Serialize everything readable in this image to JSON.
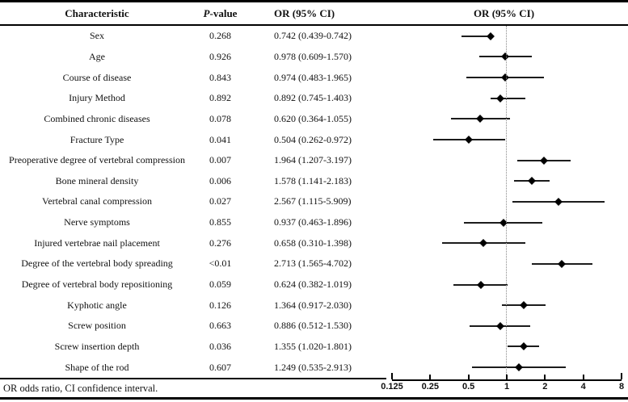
{
  "header": {
    "characteristic": "Characteristic",
    "p_value_italic": "P",
    "p_value_rest": "-value",
    "or_ci": "OR (95% CI)",
    "plot": "OR (95% CI)"
  },
  "footnote": "OR odds ratio, CI confidence interval.",
  "colors": {
    "ink": "#000000",
    "reference_line_dotted": "#8a8a8a"
  },
  "chart_data": {
    "type": "scatter",
    "subtype": "forest_plot",
    "title": "OR (95% CI)",
    "xlabel": "",
    "ylabel": "",
    "x_scale": "log2",
    "xlim": [
      0.125,
      8
    ],
    "x_ticks": [
      "0.125",
      "0.25",
      "0.5",
      "1",
      "2",
      "4",
      "8"
    ],
    "reference_line": 1,
    "marker": "diamond",
    "grid": false,
    "rows": [
      {
        "characteristic": "Sex",
        "p_value": "0.268",
        "or_ci_text": "0.742 (0.439-0.742)",
        "or": 0.742,
        "ci_low": 0.439,
        "ci_high": 0.742
      },
      {
        "characteristic": "Age",
        "p_value": "0.926",
        "or_ci_text": "0.978 (0.609-1.570)",
        "or": 0.978,
        "ci_low": 0.609,
        "ci_high": 1.57
      },
      {
        "characteristic": "Course of disease",
        "p_value": "0.843",
        "or_ci_text": "0.974 (0.483-1.965)",
        "or": 0.974,
        "ci_low": 0.483,
        "ci_high": 1.965
      },
      {
        "characteristic": "Injury Method",
        "p_value": "0.892",
        "or_ci_text": "0.892 (0.745-1.403)",
        "or": 0.892,
        "ci_low": 0.745,
        "ci_high": 1.403
      },
      {
        "characteristic": "Combined chronic diseases",
        "p_value": "0.078",
        "or_ci_text": "0.620 (0.364-1.055)",
        "or": 0.62,
        "ci_low": 0.364,
        "ci_high": 1.055
      },
      {
        "characteristic": "Fracture Type",
        "p_value": "0.041",
        "or_ci_text": "0.504 (0.262-0.972)",
        "or": 0.504,
        "ci_low": 0.262,
        "ci_high": 0.972
      },
      {
        "characteristic": "Preoperative degree of vertebral compression",
        "p_value": "0.007",
        "or_ci_text": "1.964 (1.207-3.197)",
        "or": 1.964,
        "ci_low": 1.207,
        "ci_high": 3.197
      },
      {
        "characteristic": "Bone mineral density",
        "p_value": "0.006",
        "or_ci_text": "1.578 (1.141-2.183)",
        "or": 1.578,
        "ci_low": 1.141,
        "ci_high": 2.183
      },
      {
        "characteristic": "Vertebral canal compression",
        "p_value": "0.027",
        "or_ci_text": "2.567 (1.115-5.909)",
        "or": 2.567,
        "ci_low": 1.115,
        "ci_high": 5.909
      },
      {
        "characteristic": "Nerve symptoms",
        "p_value": "0.855",
        "or_ci_text": "0.937 (0.463-1.896)",
        "or": 0.937,
        "ci_low": 0.463,
        "ci_high": 1.896
      },
      {
        "characteristic": "Injured vertebrae nail placement",
        "p_value": "0.276",
        "or_ci_text": "0.658 (0.310-1.398)",
        "or": 0.658,
        "ci_low": 0.31,
        "ci_high": 1.398
      },
      {
        "characteristic": "Degree of the vertebral body spreading",
        "p_value": "<0.01",
        "or_ci_text": "2.713 (1.565-4.702)",
        "or": 2.713,
        "ci_low": 1.565,
        "ci_high": 4.702
      },
      {
        "characteristic": "Degree of vertebral body repositioning",
        "p_value": "0.059",
        "or_ci_text": "0.624 (0.382-1.019)",
        "or": 0.624,
        "ci_low": 0.382,
        "ci_high": 1.019
      },
      {
        "characteristic": "Kyphotic angle",
        "p_value": "0.126",
        "or_ci_text": "1.364 (0.917-2.030)",
        "or": 1.364,
        "ci_low": 0.917,
        "ci_high": 2.03
      },
      {
        "characteristic": "Screw position",
        "p_value": "0.663",
        "or_ci_text": "0.886 (0.512-1.530)",
        "or": 0.886,
        "ci_low": 0.512,
        "ci_high": 1.53
      },
      {
        "characteristic": "Screw insertion depth",
        "p_value": "0.036",
        "or_ci_text": "1.355 (1.020-1.801)",
        "or": 1.355,
        "ci_low": 1.02,
        "ci_high": 1.801
      },
      {
        "characteristic": "Shape of the rod",
        "p_value": "0.607",
        "or_ci_text": "1.249 (0.535-2.913)",
        "or": 1.249,
        "ci_low": 0.535,
        "ci_high": 2.913
      }
    ]
  }
}
